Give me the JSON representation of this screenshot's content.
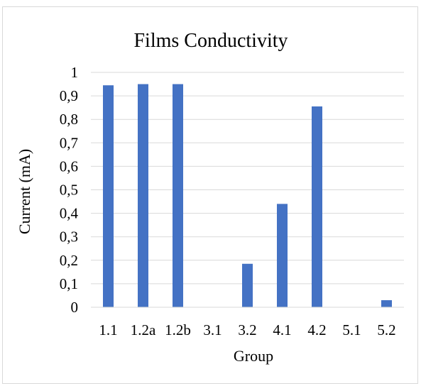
{
  "chart_data": {
    "type": "bar",
    "title": "Films Conductivity",
    "xlabel": "Group",
    "ylabel": "Current (mA)",
    "categories": [
      "1.1",
      "1.2a",
      "1.2b",
      "3.1",
      "3.2",
      "4.1",
      "4.2",
      "5.1",
      "5.2"
    ],
    "values": [
      0.945,
      0.95,
      0.95,
      0,
      0.185,
      0.44,
      0.855,
      0,
      0.03
    ],
    "ylim": [
      0,
      1
    ],
    "yticks": [
      0,
      0.1,
      0.2,
      0.3,
      0.4,
      0.5,
      0.6,
      0.7,
      0.8,
      0.9,
      1
    ],
    "ytick_labels": [
      "0",
      "0,1",
      "0,2",
      "0,3",
      "0,4",
      "0,5",
      "0,6",
      "0,7",
      "0,8",
      "0,9",
      "1"
    ],
    "grid": true,
    "legend": "none",
    "colors": {
      "bar": "#4472c4",
      "grid": "#d9d9d9",
      "frame": "#d9d9d9"
    }
  }
}
